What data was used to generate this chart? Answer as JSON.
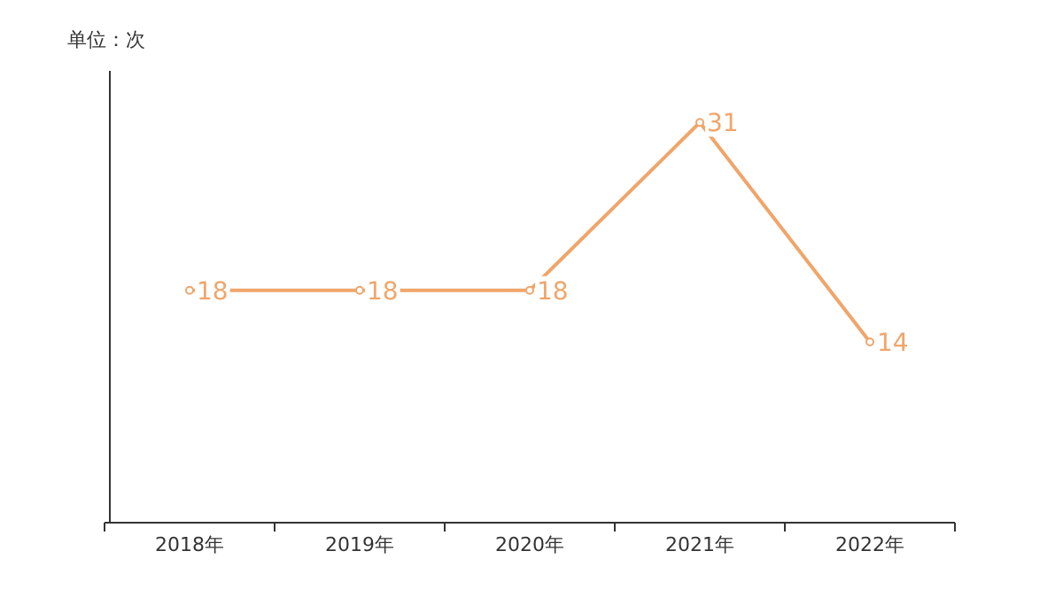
{
  "chart_data": {
    "type": "line",
    "ylabel": "单位：次",
    "categories": [
      "2018年",
      "2019年",
      "2020年",
      "2021年",
      "2022年"
    ],
    "series": [
      {
        "color": "#f0a56a",
        "values": [
          18,
          18,
          18,
          31,
          14
        ]
      }
    ],
    "ylim": [
      0,
      35
    ],
    "data_labels": true,
    "marker": "circle",
    "line_style": "solid",
    "grid": false
  }
}
